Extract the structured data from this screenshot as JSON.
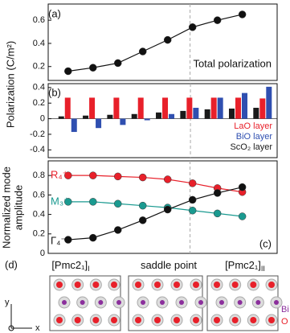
{
  "chart_data": [
    {
      "type": "line",
      "panel": "(a)",
      "ylabel": "Polarization (C/m²)",
      "annotation": "Total polarization",
      "x": [
        0,
        1,
        2,
        3,
        4,
        5,
        6,
        7
      ],
      "values": [
        0.16,
        0.19,
        0.23,
        0.33,
        0.43,
        0.54,
        0.6,
        0.65
      ],
      "color": "#111111",
      "xlim": [
        -0.8,
        8.4
      ],
      "ylim": [
        0.08,
        0.74
      ],
      "yticks": [
        0.2,
        0.4,
        0.6
      ],
      "vline": 4.9
    },
    {
      "type": "bar",
      "panel": "(b)",
      "x": [
        0,
        1,
        2,
        3,
        4,
        5,
        6,
        7,
        8
      ],
      "xlim": [
        -0.8,
        8.6
      ],
      "ylim": [
        -0.5,
        0.45
      ],
      "yticks": [
        -0.4,
        -0.2,
        0,
        0.2,
        0.4
      ],
      "vline": 5.04,
      "series": [
        {
          "name": "ScO₂ layer",
          "color": "#1a1a1a",
          "values": [
            0.03,
            0.04,
            0.05,
            0.06,
            0.08,
            0.1,
            0.12,
            0.13,
            0.14
          ]
        },
        {
          "name": "LaO layer",
          "color": "#e8202a",
          "values": [
            0.27,
            0.27,
            0.27,
            0.27,
            0.27,
            0.27,
            0.27,
            0.27,
            0.26
          ]
        },
        {
          "name": "BiO  layer",
          "color": "#2f4fb0",
          "values": [
            -0.17,
            -0.12,
            -0.08,
            -0.02,
            0.06,
            0.14,
            0.27,
            0.33,
            0.41
          ]
        }
      ]
    },
    {
      "type": "line",
      "panel": "(c)",
      "ylabel": [
        "Normalized mode",
        "amplitude"
      ],
      "x": [
        0,
        1,
        2,
        3,
        4,
        5,
        6,
        7
      ],
      "xlim": [
        -0.8,
        8.4
      ],
      "ylim": [
        0,
        0.95
      ],
      "yticks": [
        0,
        0.2,
        0.4,
        0.6,
        0.8
      ],
      "vline": 4.9,
      "series": [
        {
          "name": "R₄⁺",
          "color": "#e8202a",
          "values": [
            0.8,
            0.8,
            0.79,
            0.78,
            0.76,
            0.72,
            0.67,
            0.63
          ]
        },
        {
          "name": "M₃⁺",
          "color": "#1a9a90",
          "values": [
            0.53,
            0.53,
            0.51,
            0.49,
            0.47,
            0.44,
            0.41,
            0.38
          ]
        },
        {
          "name": "Γ₄⁻",
          "color": "#111111",
          "values": [
            0.14,
            0.16,
            0.24,
            0.34,
            0.45,
            0.55,
            0.62,
            0.68
          ]
        }
      ]
    }
  ],
  "x_labels": [
    {
      "text": "[Pmc2₁]",
      "sub": "I"
    },
    {
      "text": "saddle point"
    },
    {
      "text": "[Pmc2₁]",
      "sub": "II"
    }
  ],
  "panel_d": {
    "label": "(d)",
    "legend": [
      "Bi",
      "O"
    ],
    "axes": [
      "y",
      "x"
    ]
  }
}
